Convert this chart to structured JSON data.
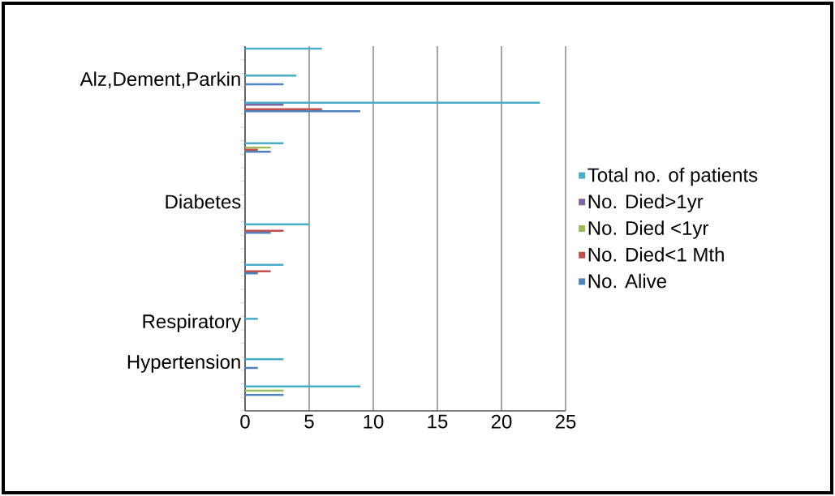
{
  "chart_data": {
    "type": "bar",
    "orientation": "horizontal",
    "categories": [
      null,
      null,
      "Alz,Dement,Parkin",
      null,
      null,
      null,
      null,
      null,
      null,
      null,
      null,
      "Diabetes",
      null,
      null,
      null,
      null,
      null,
      null,
      null,
      null,
      "Respiratory",
      null,
      null,
      "Hypertension",
      null,
      null,
      null
    ],
    "series": [
      {
        "name": "Total no. of patients",
        "color": "#4bacc6",
        "values": [
          6,
          null,
          4,
          null,
          23,
          null,
          null,
          3,
          null,
          null,
          null,
          null,
          null,
          5,
          null,
          null,
          3,
          null,
          null,
          null,
          1,
          null,
          null,
          3,
          null,
          9,
          null
        ]
      },
      {
        "name": "No. Died>1yr",
        "color": "#8064a2",
        "values": [
          null,
          null,
          null,
          null,
          3,
          null,
          null,
          null,
          null,
          null,
          null,
          null,
          null,
          null,
          null,
          null,
          null,
          null,
          null,
          null,
          null,
          null,
          null,
          null,
          null,
          null,
          null
        ]
      },
      {
        "name": "No. Died <1yr",
        "color": "#9bbb59",
        "values": [
          null,
          null,
          null,
          null,
          null,
          null,
          null,
          2,
          null,
          null,
          null,
          null,
          null,
          null,
          null,
          null,
          null,
          null,
          null,
          null,
          null,
          null,
          null,
          null,
          null,
          3,
          null
        ]
      },
      {
        "name": "No. Died<1 Mth",
        "color": "#c0504d",
        "values": [
          null,
          null,
          null,
          null,
          6,
          null,
          null,
          1,
          null,
          null,
          null,
          null,
          null,
          3,
          null,
          null,
          2,
          null,
          null,
          null,
          null,
          null,
          null,
          null,
          null,
          null,
          null
        ]
      },
      {
        "name": "No. Alive",
        "color": "#4f81bd",
        "values": [
          null,
          null,
          3,
          null,
          9,
          null,
          null,
          2,
          null,
          null,
          null,
          null,
          null,
          2,
          null,
          null,
          1,
          null,
          null,
          null,
          null,
          null,
          null,
          1,
          null,
          3,
          null
        ]
      }
    ],
    "xlim": [
      0,
      25
    ],
    "xticks": [
      0,
      5,
      10,
      15,
      20,
      25
    ],
    "grid": "x",
    "legend": "right"
  }
}
